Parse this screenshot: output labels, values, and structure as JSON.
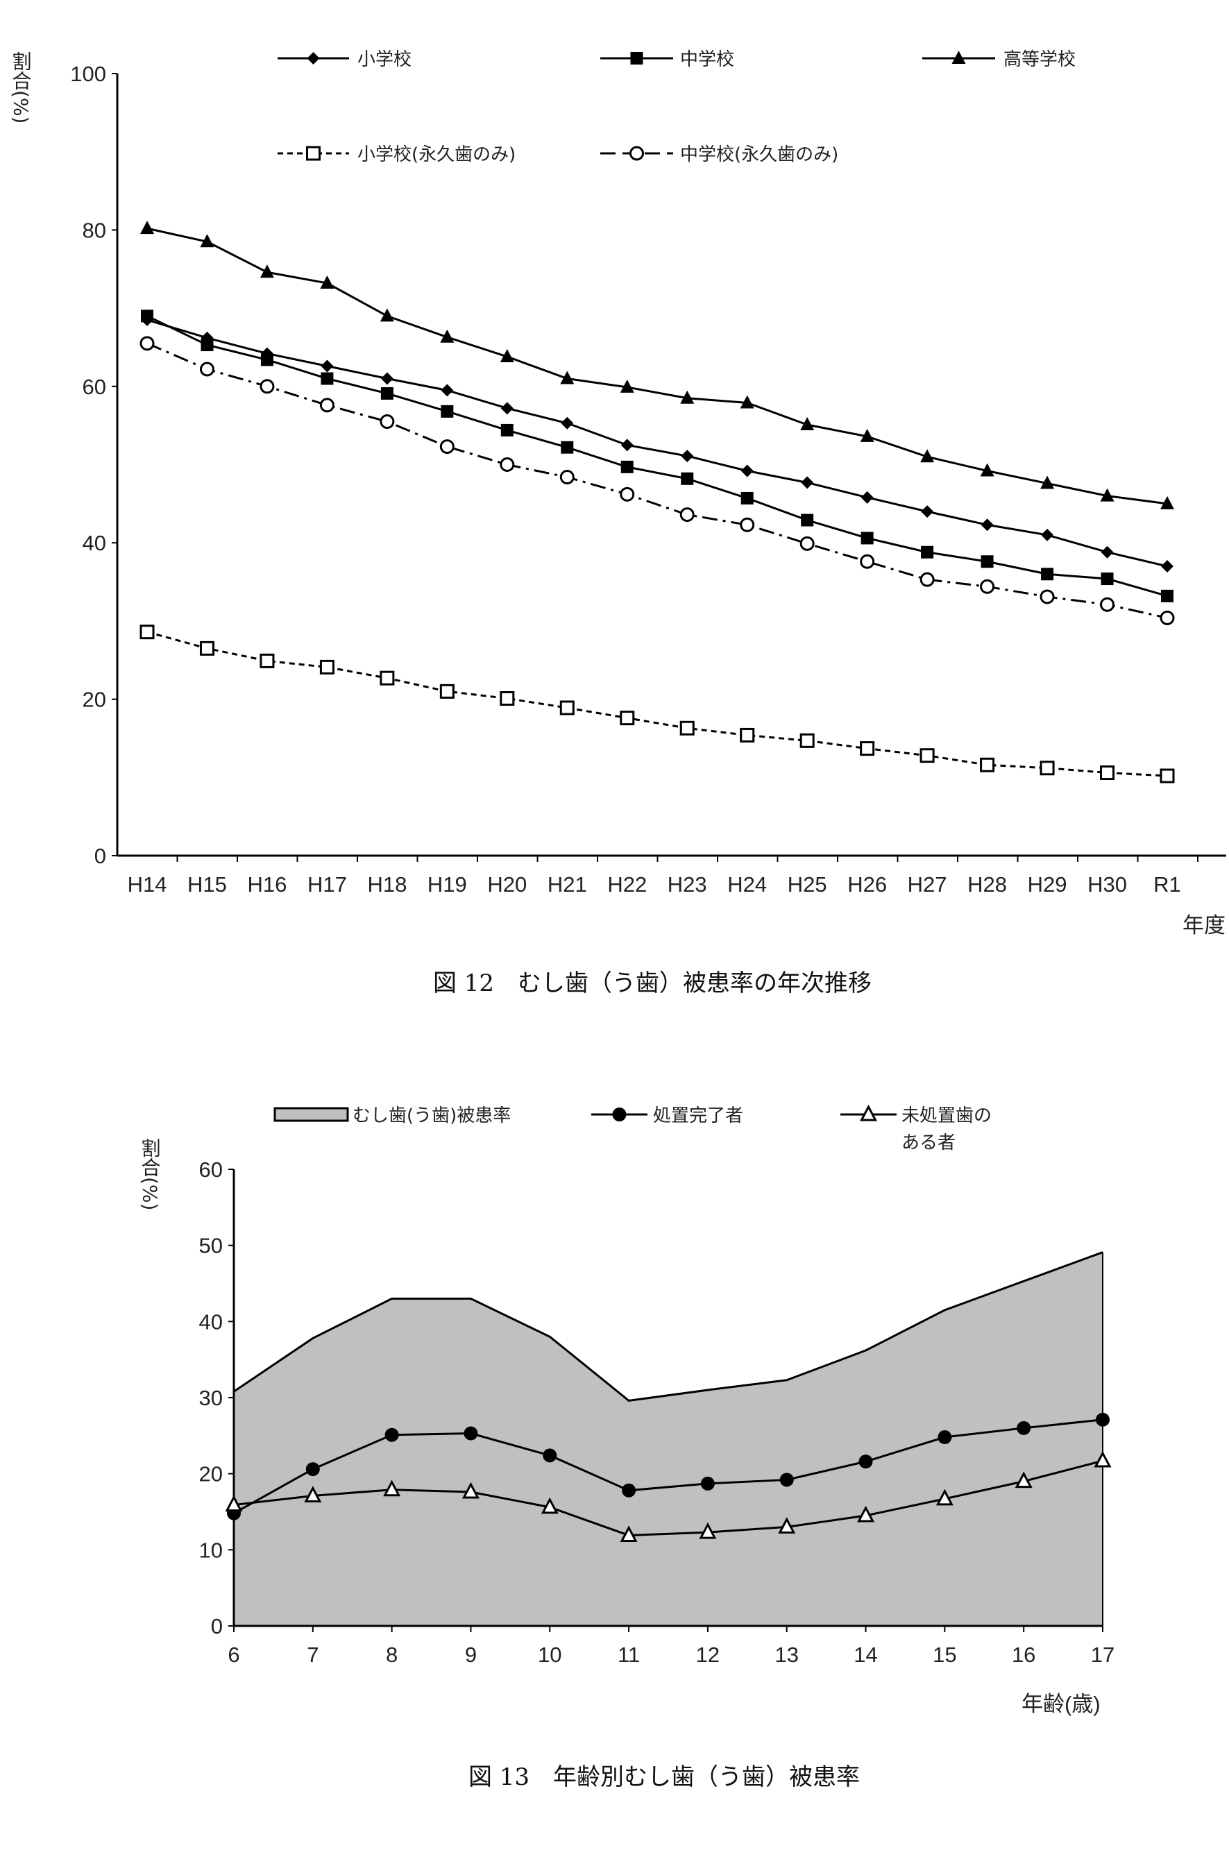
{
  "chart_data": [
    {
      "type": "line",
      "title": "図 12　むし歯（う歯）被患率の年次推移",
      "xlabel": "年度",
      "ylabel": "割合(%)",
      "ylim": [
        0,
        100
      ],
      "yticks": [
        "0",
        "20",
        "40",
        "60",
        "80",
        "100"
      ],
      "categories": [
        "H14",
        "H15",
        "H16",
        "H17",
        "H18",
        "H19",
        "H20",
        "H21",
        "H22",
        "H23",
        "H24",
        "H25",
        "H26",
        "H27",
        "H28",
        "H29",
        "H30",
        "R1"
      ],
      "legend_position": "top",
      "series": [
        {
          "name": "小学校",
          "marker": "diamond",
          "style": "solid",
          "values": [
            68.5,
            66.2,
            64.2,
            62.6,
            61.0,
            59.5,
            57.2,
            55.3,
            52.5,
            51.1,
            49.2,
            47.7,
            45.8,
            44.0,
            42.3,
            41.0,
            38.8,
            37.0
          ]
        },
        {
          "name": "中学校",
          "marker": "square",
          "style": "solid",
          "values": [
            69.0,
            65.3,
            63.4,
            61.0,
            59.1,
            56.8,
            54.4,
            52.2,
            49.7,
            48.2,
            45.7,
            42.9,
            40.6,
            38.8,
            37.6,
            36.0,
            35.4,
            33.2
          ]
        },
        {
          "name": "高等学校",
          "marker": "triangle",
          "style": "solid",
          "values": [
            80.2,
            78.5,
            74.6,
            73.2,
            69.0,
            66.3,
            63.8,
            61.0,
            59.9,
            58.5,
            57.9,
            55.1,
            53.6,
            51.0,
            49.2,
            47.6,
            46.0,
            45.0
          ]
        },
        {
          "name": "小学校(永久歯のみ)",
          "marker": "open-square",
          "style": "dashed",
          "values": [
            28.6,
            26.5,
            24.9,
            24.1,
            22.7,
            21.0,
            20.1,
            18.9,
            17.6,
            16.3,
            15.4,
            14.7,
            13.7,
            12.8,
            11.6,
            11.2,
            10.6,
            10.2
          ]
        },
        {
          "name": "中学校(永久歯のみ)",
          "marker": "open-circle",
          "style": "dash-dot",
          "values": [
            65.5,
            62.2,
            60.0,
            57.6,
            55.5,
            52.3,
            50.0,
            48.4,
            46.2,
            43.6,
            42.3,
            39.9,
            37.6,
            35.3,
            34.4,
            33.1,
            32.1,
            30.4
          ]
        }
      ]
    },
    {
      "type": "area",
      "title": "図 13　年齢別むし歯（う歯）被患率",
      "xlabel": "年齢(歳)",
      "ylabel": "割合(%)",
      "ylim": [
        0,
        60
      ],
      "yticks": [
        "0",
        "10",
        "20",
        "30",
        "40",
        "50",
        "60"
      ],
      "categories": [
        "6",
        "7",
        "8",
        "9",
        "10",
        "11",
        "12",
        "13",
        "14",
        "15",
        "16",
        "17"
      ],
      "legend_position": "top",
      "series": [
        {
          "name": "むし歯(う歯)被患率",
          "marker": "area",
          "style": "area",
          "values": [
            30.8,
            37.8,
            43.0,
            43.0,
            38.0,
            29.6,
            31.0,
            32.3,
            36.2,
            41.5,
            45.3,
            49.1
          ]
        },
        {
          "name": "処置完了者",
          "marker": "circle",
          "style": "solid",
          "values": [
            14.8,
            20.6,
            25.1,
            25.3,
            22.4,
            17.8,
            18.7,
            19.2,
            21.6,
            24.8,
            26.0,
            27.1
          ]
        },
        {
          "name": "未処置歯の",
          "name_line2": "ある者",
          "marker": "open-triangle",
          "style": "solid",
          "values": [
            15.9,
            17.1,
            17.9,
            17.6,
            15.6,
            11.9,
            12.3,
            13.0,
            14.5,
            16.7,
            19.0,
            21.7
          ]
        }
      ]
    }
  ],
  "colors": {
    "line": "#000000",
    "area_fill": "#c0c0c0",
    "marker_open_fill": "#ffffff"
  }
}
